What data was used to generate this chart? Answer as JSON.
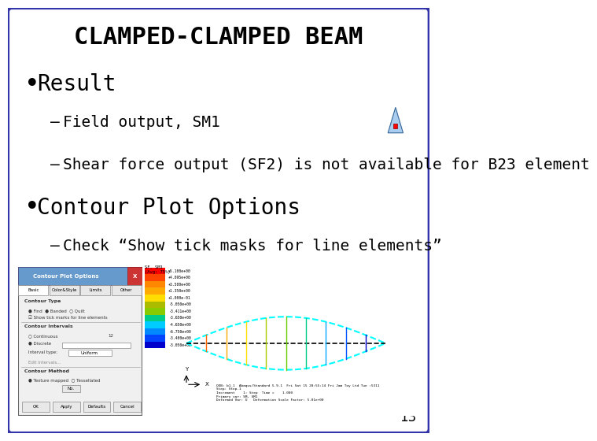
{
  "title": "CLAMPED-CLAMPED BEAM",
  "title_fontsize": 22,
  "title_font": "monospace",
  "bg_color": "#ffffff",
  "border_color": "#3333aa",
  "border_linewidth": 3,
  "bullet1": "Result",
  "bullet1_fontsize": 20,
  "sub1a": "Field output, SM1",
  "sub1a_fontsize": 14,
  "sub1b": "Shear force output (SF2) is not available for B23 element",
  "sub1b_fontsize": 14,
  "bullet2": "Contour Plot Options",
  "bullet2_fontsize": 20,
  "sub2a": "Check “Show tick masks for line elements”",
  "sub2a_fontsize": 14,
  "page_number": "13",
  "page_number_fontsize": 12,
  "legend_colors": [
    "#ff0000",
    "#ff4400",
    "#ff8800",
    "#ffaa00",
    "#ffdd00",
    "#aabb00",
    "#88cc00",
    "#00cc88",
    "#00ccff",
    "#0088ff",
    "#0044ff",
    "#0000cc"
  ],
  "legend_labels": [
    "+5.100e+00",
    "+4.095e+00",
    "+3.500e+00",
    "+1.350e+00",
    "+1.000e-01",
    "-5.050e+00",
    "-3.411e+00",
    "-3.650e+00",
    "-4.650e+00",
    "-6.750e+00",
    "-3.400e+00",
    "-3.050e+00"
  ],
  "font_color": "#000000"
}
